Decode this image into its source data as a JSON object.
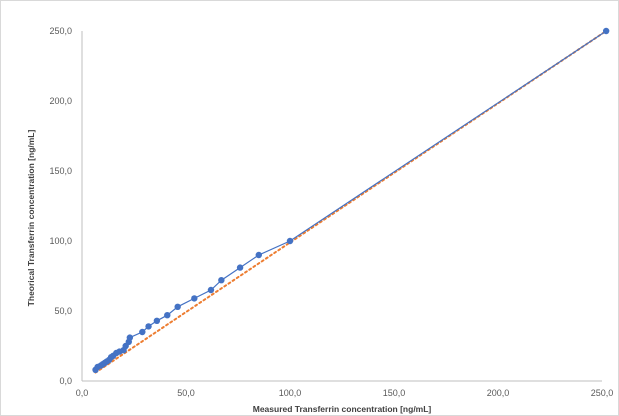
{
  "chart_data": {
    "type": "scatter",
    "title": "",
    "xlabel": "Measured Transferrin concentration [ng/mL]",
    "ylabel": "Theorical Transferrin concentration [ng/mL]",
    "xlim": [
      0,
      250
    ],
    "ylim": [
      0,
      250
    ],
    "x_ticks": [
      "0,0",
      "50,0",
      "100,0",
      "150,0",
      "200,0",
      "250,0"
    ],
    "y_ticks": [
      "0,0",
      "50,0",
      "100,0",
      "150,0",
      "200,0",
      "250,0"
    ],
    "grid": false,
    "legend": "none",
    "series": [
      {
        "style": "markers+line",
        "color": "#4472c4",
        "points": [
          [
            6.5,
            8
          ],
          [
            7.5,
            10
          ],
          [
            9,
            11
          ],
          [
            10,
            12
          ],
          [
            11,
            13
          ],
          [
            12,
            14
          ],
          [
            13,
            15
          ],
          [
            14,
            17
          ],
          [
            15,
            18
          ],
          [
            16.5,
            20
          ],
          [
            18,
            21
          ],
          [
            20,
            22
          ],
          [
            21,
            25
          ],
          [
            22.5,
            28
          ],
          [
            23,
            31
          ],
          [
            29,
            35
          ],
          [
            32,
            39
          ],
          [
            36,
            43
          ],
          [
            41,
            47
          ],
          [
            46,
            53
          ],
          [
            54,
            59
          ],
          [
            62,
            65
          ],
          [
            67,
            72
          ],
          [
            76,
            81
          ],
          [
            85,
            90
          ],
          [
            100,
            100
          ],
          [
            252,
            250
          ]
        ]
      }
    ],
    "trendline": {
      "style": "dotted",
      "color": "#ed7d31",
      "from": [
        6.5,
        6
      ],
      "to": [
        252,
        250
      ]
    }
  }
}
